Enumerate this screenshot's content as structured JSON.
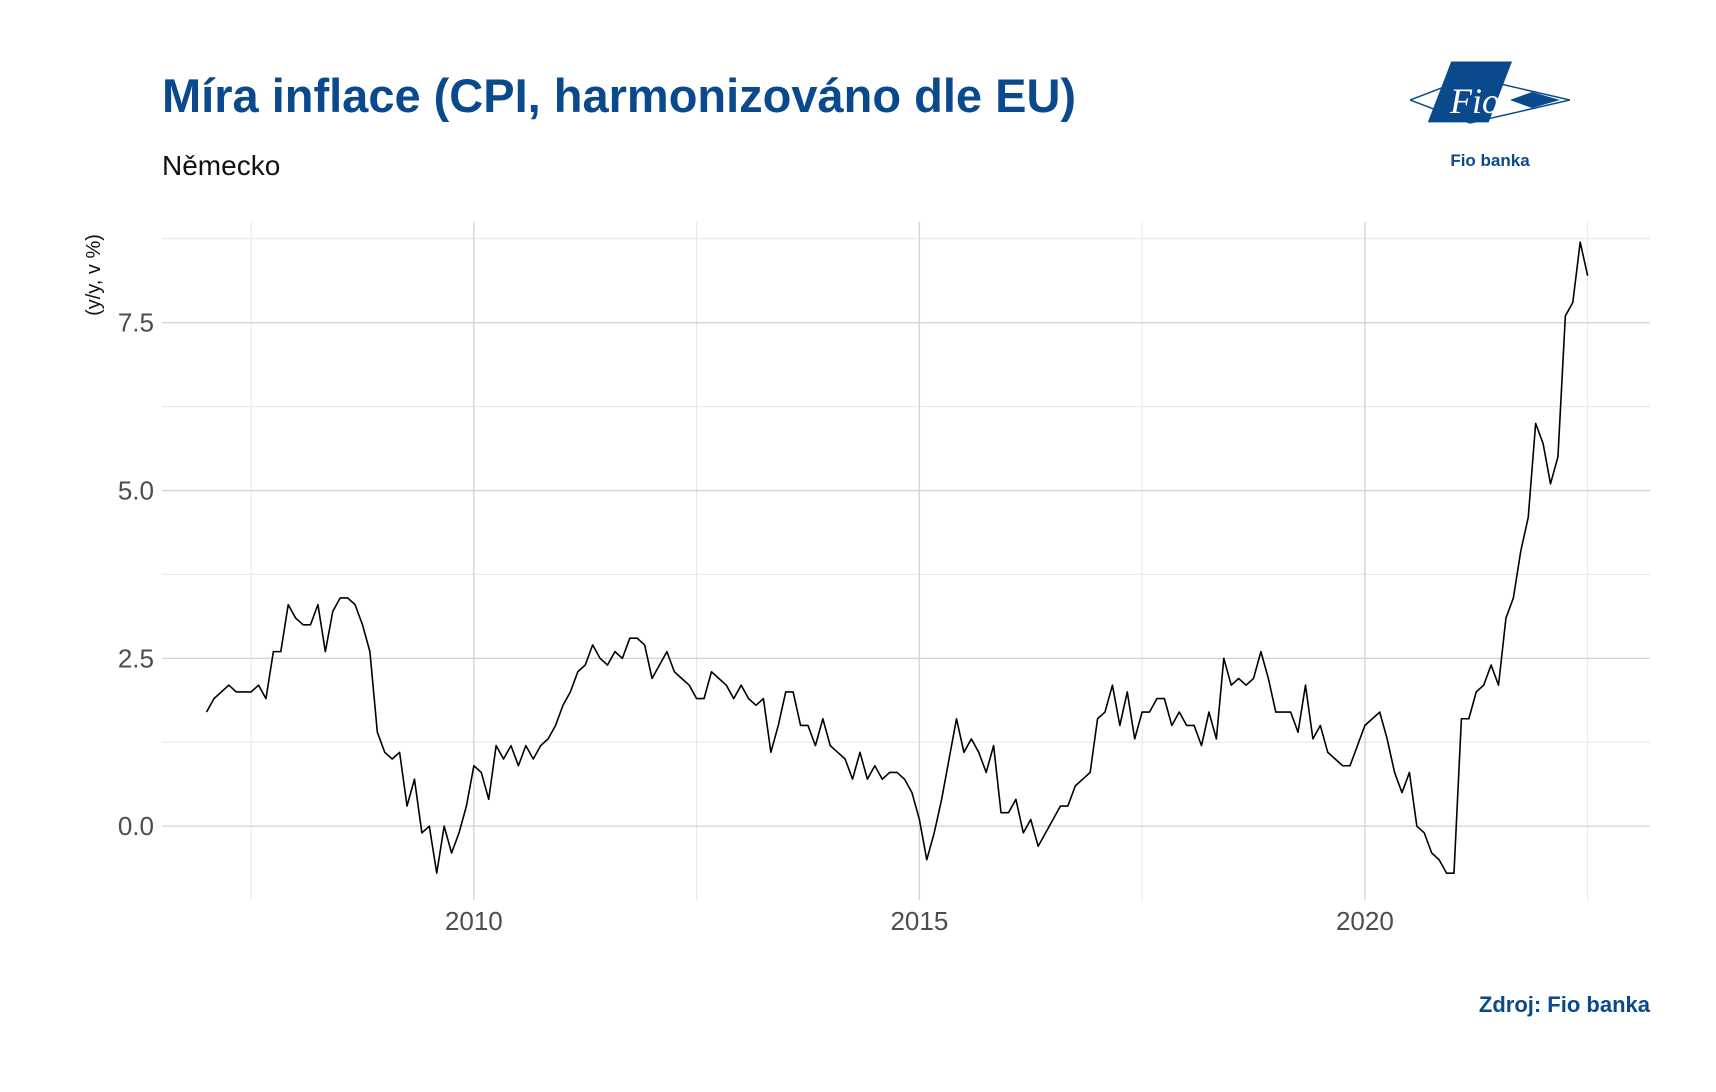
{
  "title": "Míra inflace (CPI, harmonizováno dle EU)",
  "subtitle": "Německo",
  "source": "Zdroj: Fio banka",
  "logo": {
    "mark_text": "Fio",
    "caption": "Fio banka",
    "icon": "fio-banka-logo"
  },
  "colors": {
    "title": "#0a4a8c",
    "line": "#000000",
    "grid": "#d9d9d9",
    "logo_blue": "#0a4a8c"
  },
  "chart_data": {
    "type": "line",
    "ylabel": "(y/y, v %)",
    "xlabel": "",
    "x_start": "2007-01",
    "x_frequency": "monthly",
    "xlim": [
      2006.5,
      2023.2
    ],
    "ylim": [
      -1.1,
      9.0
    ],
    "x_ticks": [
      2010,
      2015,
      2020
    ],
    "x_tick_labels": [
      "2010",
      "2015",
      "2020"
    ],
    "y_ticks": [
      0,
      2.5,
      5,
      7.5
    ],
    "y_tick_labels": [
      "0.0",
      "2.5",
      "5.0",
      "7.5"
    ],
    "grid": true,
    "legend": "none",
    "series": [
      {
        "values": [
          1.7,
          1.9,
          2.0,
          2.1,
          2.0,
          2.0,
          2.0,
          2.1,
          1.9,
          2.6,
          2.6,
          3.3,
          3.1,
          3.0,
          3.0,
          3.3,
          2.6,
          3.2,
          3.4,
          3.4,
          3.3,
          3.0,
          2.6,
          1.4,
          1.1,
          1.0,
          1.1,
          0.3,
          0.7,
          -0.1,
          0.0,
          -0.7,
          0.0,
          -0.4,
          -0.1,
          0.3,
          0.9,
          0.8,
          0.4,
          1.2,
          1.0,
          1.2,
          0.9,
          1.2,
          1.0,
          1.2,
          1.3,
          1.5,
          1.8,
          2.0,
          2.3,
          2.4,
          2.7,
          2.5,
          2.4,
          2.6,
          2.5,
          2.8,
          2.8,
          2.7,
          2.2,
          2.4,
          2.6,
          2.3,
          2.2,
          2.1,
          1.9,
          1.9,
          2.3,
          2.2,
          2.1,
          1.9,
          2.1,
          1.9,
          1.8,
          1.9,
          1.1,
          1.5,
          2.0,
          2.0,
          1.5,
          1.5,
          1.2,
          1.6,
          1.2,
          1.1,
          1.0,
          0.7,
          1.1,
          0.7,
          0.9,
          0.7,
          0.8,
          0.8,
          0.7,
          0.5,
          0.1,
          -0.5,
          -0.1,
          0.4,
          1.0,
          1.6,
          1.1,
          1.3,
          1.1,
          0.8,
          1.2,
          0.2,
          0.2,
          0.4,
          -0.1,
          0.1,
          -0.3,
          -0.1,
          0.1,
          0.3,
          0.3,
          0.6,
          0.7,
          0.8,
          1.6,
          1.7,
          2.1,
          1.5,
          2.0,
          1.3,
          1.7,
          1.7,
          1.9,
          1.9,
          1.5,
          1.7,
          1.5,
          1.5,
          1.2,
          1.7,
          1.3,
          2.5,
          2.1,
          2.2,
          2.1,
          2.2,
          2.6,
          2.2,
          1.7,
          1.7,
          1.7,
          1.4,
          2.1,
          1.3,
          1.5,
          1.1,
          1.0,
          0.9,
          0.9,
          1.2,
          1.5,
          1.6,
          1.7,
          1.3,
          0.8,
          0.5,
          0.8,
          0.0,
          -0.1,
          -0.4,
          -0.5,
          -0.7,
          -0.7,
          1.6,
          1.6,
          2.0,
          2.1,
          2.4,
          2.1,
          3.1,
          3.4,
          4.1,
          4.6,
          6.0,
          5.7,
          5.1,
          5.5,
          7.6,
          7.8,
          8.7,
          8.2
        ]
      }
    ]
  }
}
